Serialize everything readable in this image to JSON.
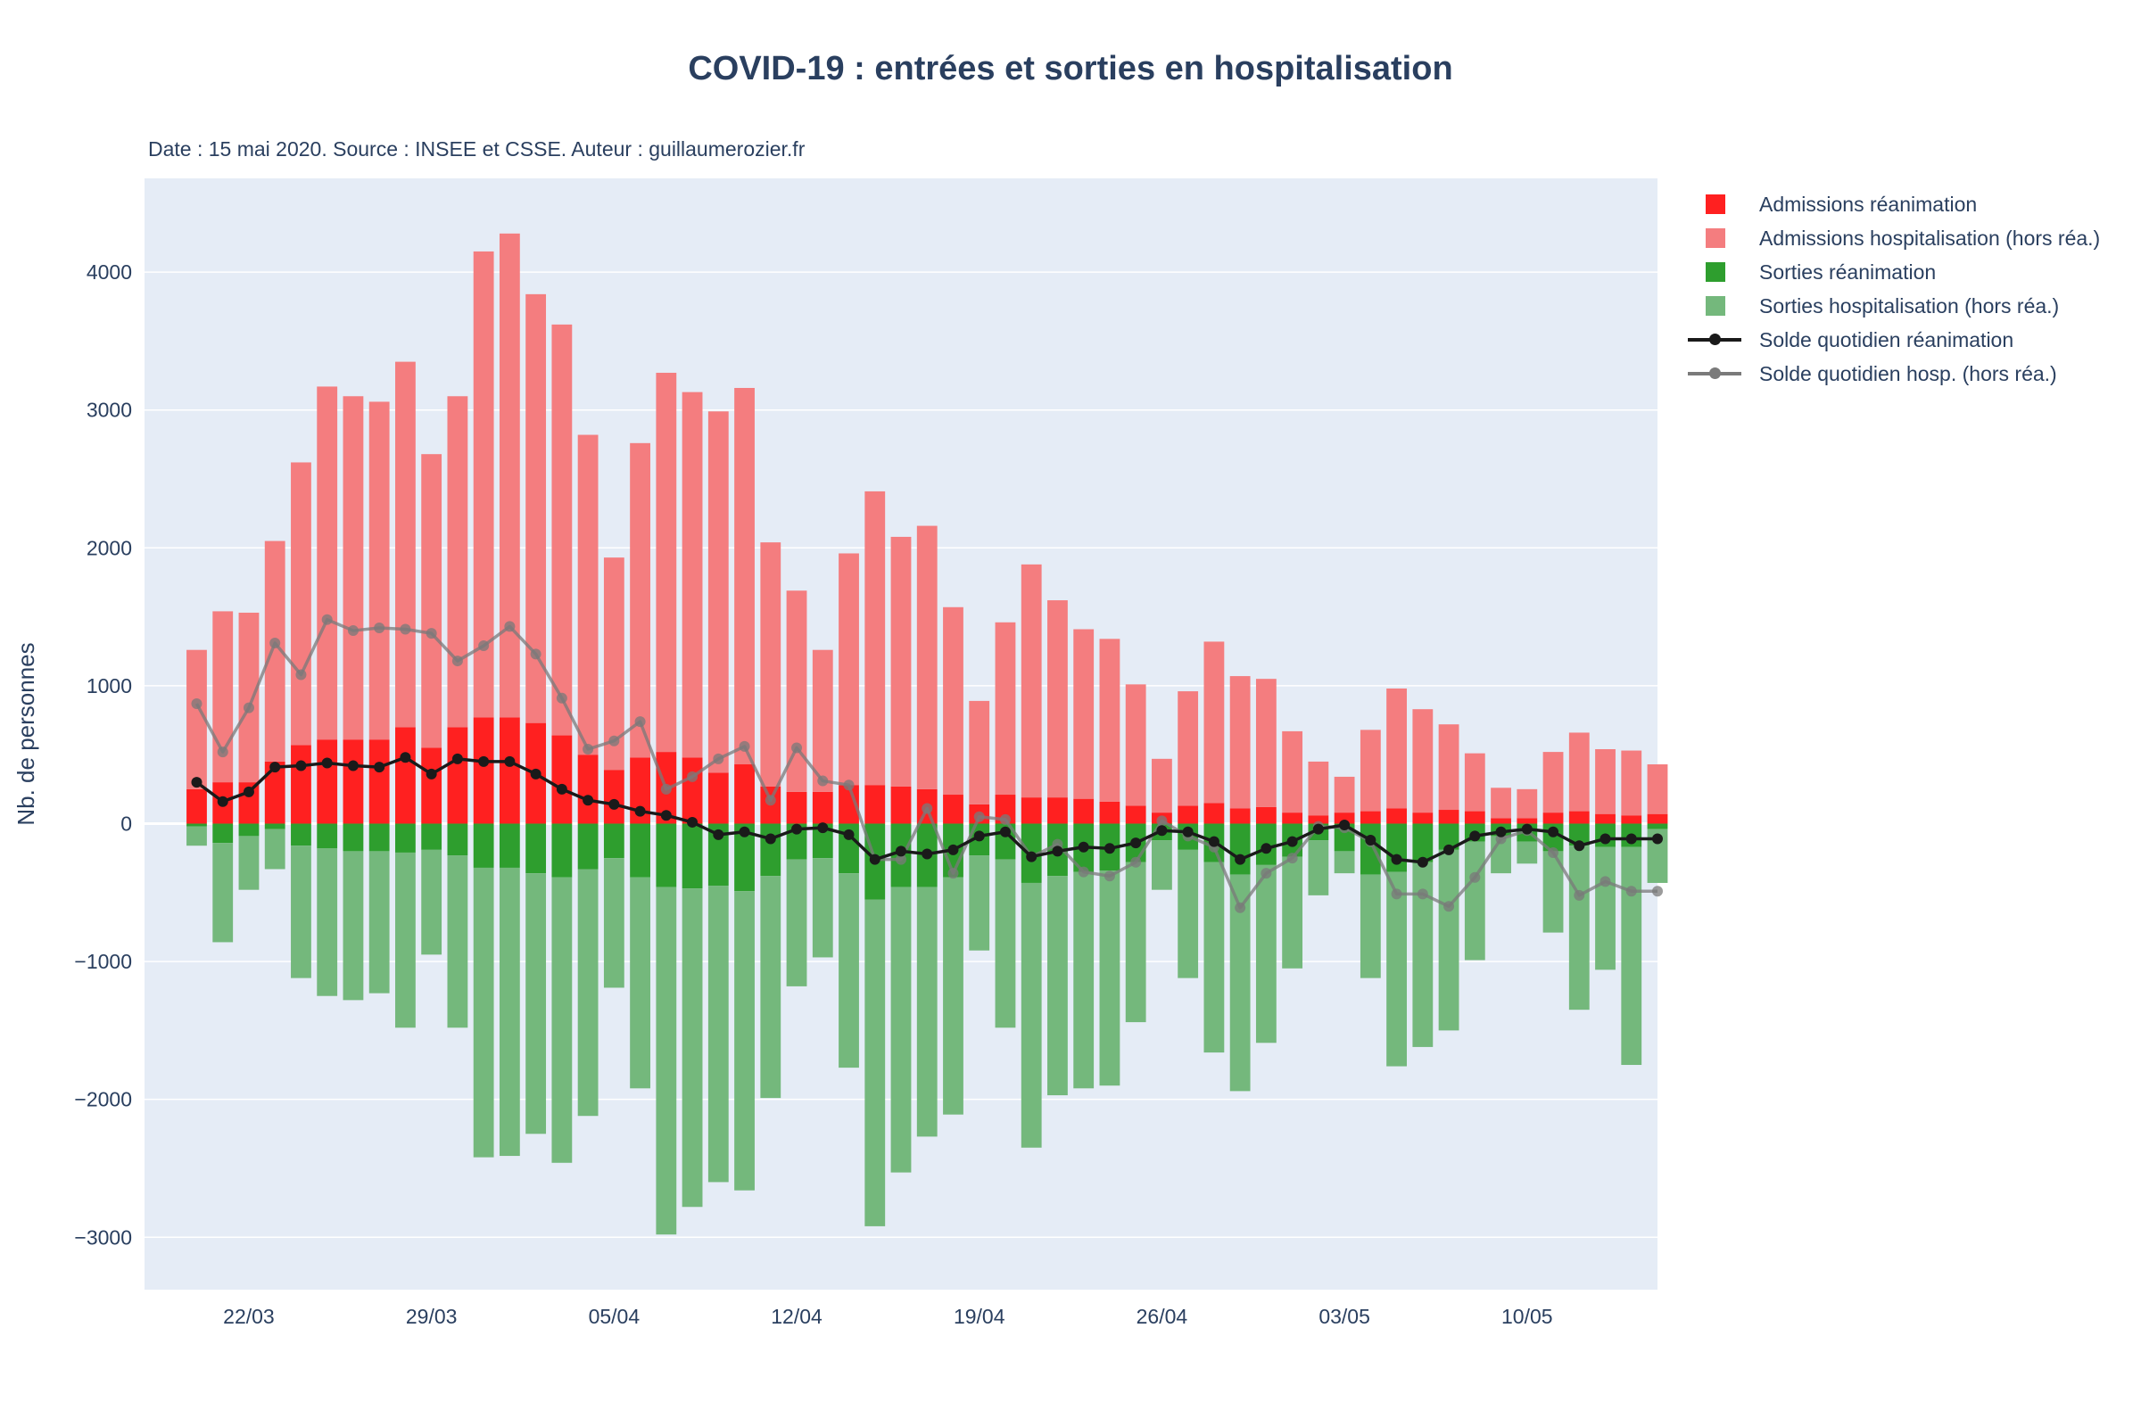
{
  "title": "COVID-19 : entrées et sorties en hospitalisation",
  "subtitle": "Date : 15 mai 2020. Source : INSEE et CSSE. Auteur : guillaumerozier.fr",
  "colors": {
    "adm_rea": "#ff2020",
    "adm_hosp": "#f47d7f",
    "out_rea": "#2e9e2e",
    "out_hosp": "#74b87c",
    "line_rea": "#1a1a1a",
    "line_hosp": "#7a7a7a",
    "plot_bg": "#e5ecf6",
    "grid": "#ffffff"
  },
  "chart_data": {
    "type": "bar",
    "title": "COVID-19 : entrées et sorties en hospitalisation",
    "xlabel": "",
    "ylabel": "Nb. de personnes",
    "ylim": [
      -3380,
      4680
    ],
    "x_range": [
      "2020-03-18",
      "2020-05-15"
    ],
    "x_ticks": [
      "2020-03-22",
      "2020-03-29",
      "2020-04-05",
      "2020-04-12",
      "2020-04-19",
      "2020-04-26",
      "2020-05-03",
      "2020-05-10"
    ],
    "x_tick_labels": [
      "22/03",
      "29/03",
      "05/04",
      "12/04",
      "19/04",
      "26/04",
      "03/05",
      "10/05"
    ],
    "y_ticks": [
      -3000,
      -2000,
      -1000,
      0,
      1000,
      2000,
      3000,
      4000
    ],
    "y_tick_labels": [
      "−3000",
      "−2000",
      "−1000",
      "0",
      "1000",
      "2000",
      "3000",
      "4000"
    ],
    "barmode": "relative",
    "grid": true,
    "legend_position": "right",
    "x": [
      "2020-03-20",
      "2020-03-21",
      "2020-03-22",
      "2020-03-23",
      "2020-03-24",
      "2020-03-25",
      "2020-03-26",
      "2020-03-27",
      "2020-03-28",
      "2020-03-29",
      "2020-03-30",
      "2020-03-31",
      "2020-04-01",
      "2020-04-02",
      "2020-04-03",
      "2020-04-04",
      "2020-04-05",
      "2020-04-06",
      "2020-04-07",
      "2020-04-08",
      "2020-04-09",
      "2020-04-10",
      "2020-04-11",
      "2020-04-12",
      "2020-04-13",
      "2020-04-14",
      "2020-04-15",
      "2020-04-16",
      "2020-04-17",
      "2020-04-18",
      "2020-04-19",
      "2020-04-20",
      "2020-04-21",
      "2020-04-22",
      "2020-04-23",
      "2020-04-24",
      "2020-04-25",
      "2020-04-26",
      "2020-04-27",
      "2020-04-28",
      "2020-04-29",
      "2020-04-30",
      "2020-05-01",
      "2020-05-02",
      "2020-05-03",
      "2020-05-04",
      "2020-05-05",
      "2020-05-06",
      "2020-05-07",
      "2020-05-08",
      "2020-05-09",
      "2020-05-10",
      "2020-05-11",
      "2020-05-12",
      "2020-05-13",
      "2020-05-14",
      "2020-05-15"
    ],
    "series": [
      {
        "name": "Admissions réanimation",
        "kind": "bar",
        "color": "#ff2020",
        "values": [
          250,
          300,
          300,
          450,
          570,
          610,
          610,
          610,
          700,
          550,
          700,
          770,
          770,
          730,
          640,
          500,
          390,
          480,
          520,
          480,
          370,
          430,
          270,
          230,
          230,
          280,
          280,
          270,
          250,
          210,
          140,
          210,
          190,
          190,
          180,
          160,
          130,
          80,
          130,
          150,
          110,
          120,
          80,
          60,
          80,
          90,
          110,
          80,
          100,
          90,
          40,
          40,
          80,
          90,
          70,
          60,
          70
        ]
      },
      {
        "name": "Admissions hospitalisation (hors réa.)",
        "kind": "bar",
        "color": "#f47d7f",
        "values": [
          1010,
          1240,
          1230,
          1600,
          2050,
          2560,
          2490,
          2450,
          2650,
          2130,
          2400,
          3380,
          3510,
          3110,
          2980,
          2320,
          1540,
          2280,
          2750,
          2650,
          2620,
          2730,
          1770,
          1460,
          1030,
          1680,
          2130,
          1810,
          1910,
          1360,
          750,
          1250,
          1690,
          1430,
          1230,
          1180,
          880,
          390,
          830,
          1170,
          960,
          930,
          590,
          390,
          260,
          590,
          870,
          750,
          620,
          420,
          220,
          210,
          440,
          570,
          470,
          470,
          360
        ]
      },
      {
        "name": "Sorties réanimation",
        "kind": "bar",
        "color": "#2e9e2e",
        "values": [
          -20,
          -140,
          -90,
          -40,
          -160,
          -180,
          -200,
          -200,
          -210,
          -190,
          -230,
          -320,
          -320,
          -360,
          -390,
          -330,
          -250,
          -390,
          -460,
          -470,
          -450,
          -490,
          -380,
          -260,
          -250,
          -360,
          -550,
          -460,
          -460,
          -390,
          -230,
          -260,
          -430,
          -380,
          -350,
          -340,
          -280,
          -120,
          -190,
          -280,
          -370,
          -300,
          -240,
          -120,
          -200,
          -370,
          -350,
          -280,
          -190,
          -130,
          -90,
          -130,
          -200,
          -160,
          -170,
          -170,
          -40
        ]
      },
      {
        "name": "Sorties hospitalisation (hors réa.)",
        "kind": "bar",
        "color": "#74b87c",
        "values": [
          -140,
          -720,
          -390,
          -290,
          -960,
          -1070,
          -1080,
          -1030,
          -1270,
          -760,
          -1250,
          -2100,
          -2090,
          -1890,
          -2070,
          -1790,
          -940,
          -1530,
          -2520,
          -2310,
          -2150,
          -2170,
          -1610,
          -920,
          -720,
          -1410,
          -2370,
          -2070,
          -1810,
          -1720,
          -690,
          -1220,
          -1920,
          -1590,
          -1570,
          -1560,
          -1160,
          -360,
          -930,
          -1380,
          -1570,
          -1290,
          -810,
          -400,
          -160,
          -750,
          -1410,
          -1340,
          -1310,
          -860,
          -270,
          -160,
          -590,
          -1190,
          -890,
          -1580,
          -390
        ]
      },
      {
        "name": "Solde quotidien réanimation",
        "kind": "line",
        "color": "#1a1a1a",
        "values": [
          300,
          160,
          230,
          410,
          420,
          440,
          420,
          410,
          480,
          360,
          470,
          450,
          450,
          360,
          250,
          170,
          140,
          90,
          60,
          10,
          -80,
          -60,
          -110,
          -40,
          -30,
          -80,
          -260,
          -200,
          -220,
          -190,
          -90,
          -60,
          -240,
          -200,
          -170,
          -180,
          -140,
          -50,
          -60,
          -130,
          -260,
          -180,
          -130,
          -40,
          -10,
          -120,
          -260,
          -280,
          -190,
          -90,
          -60,
          -40,
          -60,
          -160,
          -110,
          -110,
          -110
        ]
      },
      {
        "name": "Solde quotidien hosp. (hors réa.)",
        "kind": "line",
        "color": "#7a7a7a",
        "values": [
          870,
          520,
          840,
          1310,
          1080,
          1480,
          1400,
          1420,
          1410,
          1380,
          1180,
          1290,
          1430,
          1230,
          910,
          540,
          600,
          740,
          250,
          340,
          470,
          560,
          170,
          550,
          310,
          280,
          -260,
          -260,
          110,
          -360,
          50,
          30,
          -240,
          -150,
          -350,
          -380,
          -280,
          20,
          -90,
          -170,
          -610,
          -360,
          -250,
          -20,
          -30,
          -130,
          -510,
          -510,
          -600,
          -390,
          -110,
          -50,
          -210,
          -520,
          -420,
          -490,
          -490
        ]
      }
    ]
  }
}
